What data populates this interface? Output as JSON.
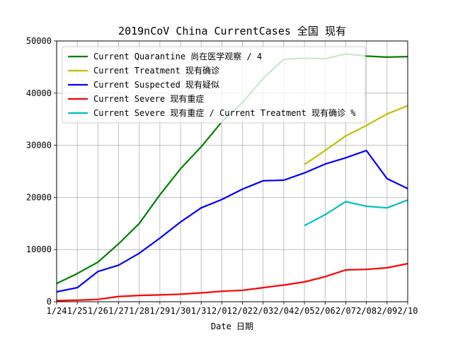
{
  "chart_data": {
    "type": "line",
    "title": "2019nCoV China CurrentCases 全国 现有",
    "xlabel": "Date 日期",
    "ylabel": "",
    "categories": [
      "1/24",
      "1/25",
      "1/26",
      "1/27",
      "1/28",
      "1/29",
      "1/30",
      "1/31",
      "2/01",
      "2/02",
      "2/03",
      "2/04",
      "2/05",
      "2/06",
      "2/07",
      "2/08",
      "2/09",
      "2/10"
    ],
    "ylim": [
      0,
      50000
    ],
    "yticks": [
      "0",
      "10000",
      "20000",
      "30000",
      "40000",
      "50000"
    ],
    "grid": true,
    "legend_position": "upper-left",
    "series": [
      {
        "name": "Current Quarantine 尚在医学观察 / 4",
        "color": "#008000",
        "values": [
          3500,
          5400,
          7600,
          11100,
          15000,
          20500,
          25500,
          29700,
          34500,
          38200,
          42800,
          46500,
          46700,
          46600,
          47500,
          47100,
          46900,
          47000
        ]
      },
      {
        "name": "Current Treatment 现有确诊",
        "color": "#bfbf00",
        "values": [
          null,
          null,
          null,
          null,
          null,
          null,
          null,
          null,
          null,
          null,
          null,
          null,
          26300,
          29000,
          31800,
          33800,
          36000,
          37600
        ]
      },
      {
        "name": "Current Suspected 现有疑似",
        "color": "#0000ff",
        "values": [
          1900,
          2700,
          5800,
          7000,
          9300,
          12200,
          15300,
          18000,
          19600,
          21600,
          23200,
          23300,
          24700,
          26400,
          27600,
          29000,
          23600,
          21700
        ]
      },
      {
        "name": "Current Severe 现有重症",
        "color": "#ff0000",
        "values": [
          200,
          300,
          450,
          1000,
          1200,
          1300,
          1450,
          1700,
          2000,
          2200,
          2700,
          3200,
          3800,
          4800,
          6100,
          6200,
          6500,
          7300
        ]
      },
      {
        "name": "Current Severe 现有重症 / Current Treatment 现有确诊 %",
        "color": "#00bfbf",
        "values": [
          null,
          null,
          null,
          null,
          null,
          null,
          null,
          null,
          null,
          null,
          null,
          null,
          14600,
          16700,
          19200,
          18300,
          18000,
          19500
        ]
      }
    ]
  }
}
